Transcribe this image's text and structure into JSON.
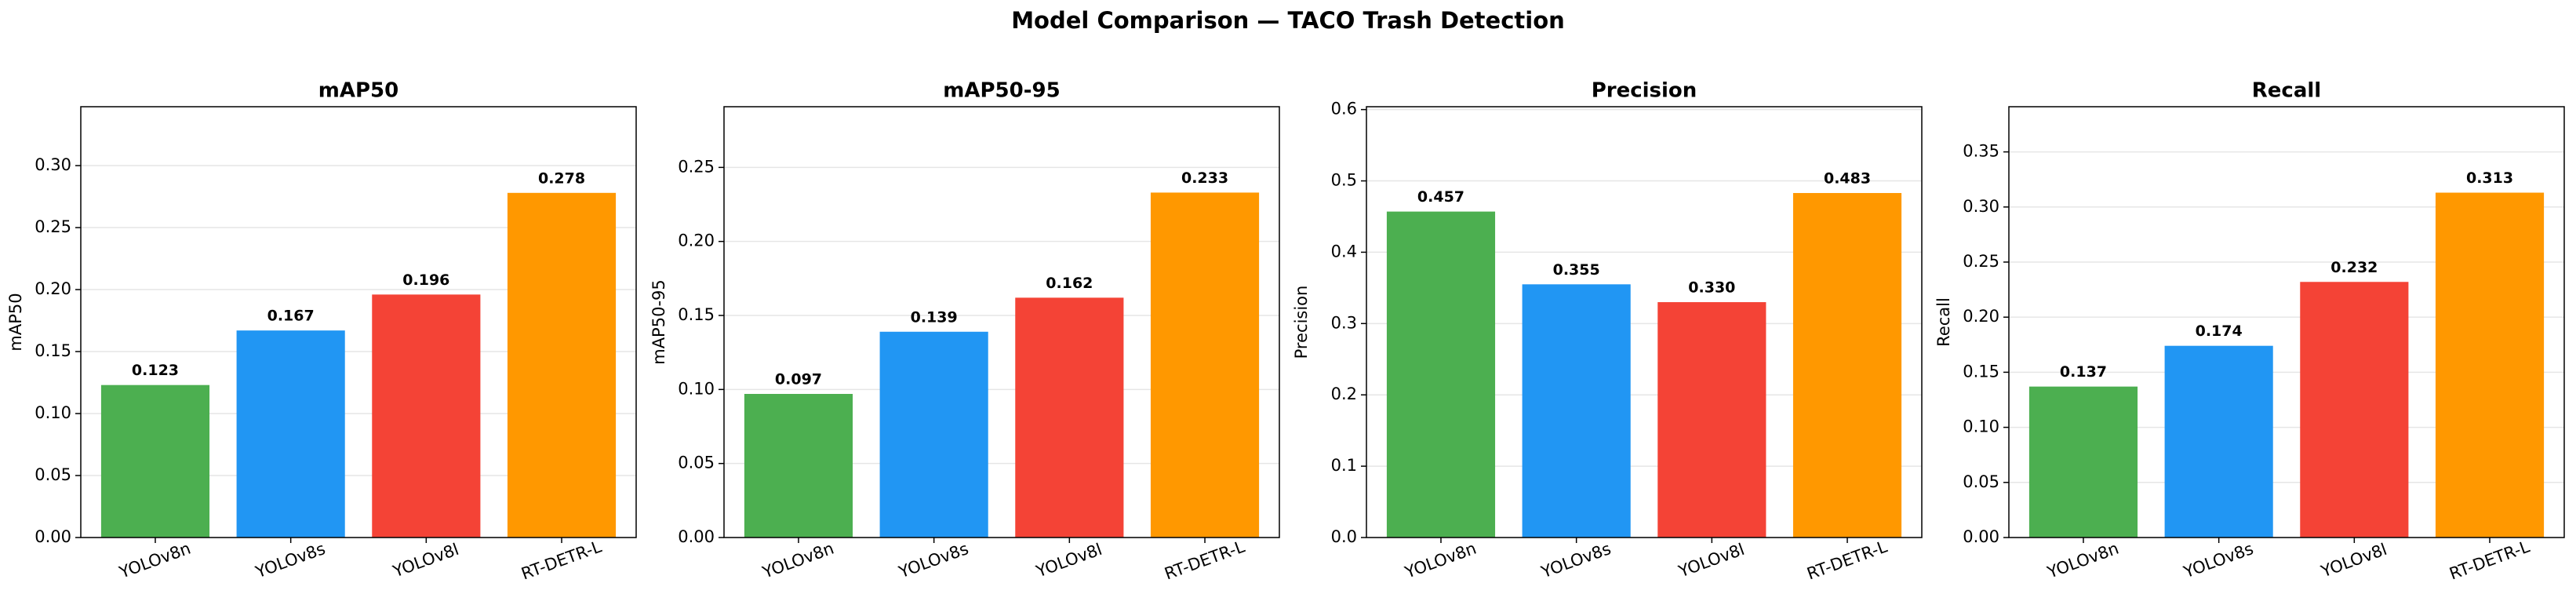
{
  "title": "Model Comparison — TACO Trash Detection",
  "chart_data": [
    {
      "type": "bar",
      "title": "mAP50",
      "ylabel": "mAP50",
      "categories": [
        "YOLOv8n",
        "YOLOv8s",
        "YOLOv8l",
        "RT-DETR-L"
      ],
      "values": [
        0.123,
        0.167,
        0.196,
        0.278
      ],
      "value_labels": [
        "0.123",
        "0.167",
        "0.196",
        "0.278"
      ],
      "colors": [
        "#4caf50",
        "#2196f3",
        "#f44336",
        "#ff9800"
      ],
      "ylim": [
        0,
        0.3475
      ],
      "yticks": [
        {
          "value": 0,
          "label": "0.00"
        },
        {
          "value": 0.05,
          "label": "0.05"
        },
        {
          "value": 0.1,
          "label": "0.10"
        },
        {
          "value": 0.15,
          "label": "0.15"
        },
        {
          "value": 0.2,
          "label": "0.20"
        },
        {
          "value": 0.25,
          "label": "0.25"
        },
        {
          "value": 0.3,
          "label": "0.30"
        }
      ],
      "grid": true
    },
    {
      "type": "bar",
      "title": "mAP50-95",
      "ylabel": "mAP50-95",
      "categories": [
        "YOLOv8n",
        "YOLOv8s",
        "YOLOv8l",
        "RT-DETR-L"
      ],
      "values": [
        0.097,
        0.139,
        0.162,
        0.233
      ],
      "value_labels": [
        "0.097",
        "0.139",
        "0.162",
        "0.233"
      ],
      "colors": [
        "#4caf50",
        "#2196f3",
        "#f44336",
        "#ff9800"
      ],
      "ylim": [
        0,
        0.291
      ],
      "yticks": [
        {
          "value": 0,
          "label": "0.00"
        },
        {
          "value": 0.05,
          "label": "0.05"
        },
        {
          "value": 0.1,
          "label": "0.10"
        },
        {
          "value": 0.15,
          "label": "0.15"
        },
        {
          "value": 0.2,
          "label": "0.20"
        },
        {
          "value": 0.25,
          "label": "0.25"
        }
      ],
      "grid": true
    },
    {
      "type": "bar",
      "title": "Precision",
      "ylabel": "Precision",
      "categories": [
        "YOLOv8n",
        "YOLOv8s",
        "YOLOv8l",
        "RT-DETR-L"
      ],
      "values": [
        0.457,
        0.355,
        0.33,
        0.483
      ],
      "value_labels": [
        "0.457",
        "0.355",
        "0.330",
        "0.483"
      ],
      "colors": [
        "#4caf50",
        "#2196f3",
        "#f44336",
        "#ff9800"
      ],
      "ylim": [
        0,
        0.604
      ],
      "yticks": [
        {
          "value": 0,
          "label": "0.0"
        },
        0.1,
        0.2,
        0.3,
        0.4,
        0.5,
        0.6
      ],
      "grid": true
    },
    {
      "type": "bar",
      "title": "Recall",
      "ylabel": "Recall",
      "categories": [
        "YOLOv8n",
        "YOLOv8s",
        "YOLOv8l",
        "RT-DETR-L"
      ],
      "values": [
        0.137,
        0.174,
        0.232,
        0.313
      ],
      "value_labels": [
        "0.137",
        "0.174",
        "0.232",
        "0.313"
      ],
      "colors": [
        "#4caf50",
        "#2196f3",
        "#f44336",
        "#ff9800"
      ],
      "ylim": [
        0,
        0.391
      ],
      "yticks": [
        {
          "value": 0,
          "label": "0.00"
        },
        {
          "value": 0.05,
          "label": "0.05"
        },
        {
          "value": 0.1,
          "label": "0.10"
        },
        {
          "value": 0.15,
          "label": "0.15"
        },
        {
          "value": 0.2,
          "label": "0.20"
        },
        {
          "value": 0.25,
          "label": "0.25"
        },
        {
          "value": 0.3,
          "label": "0.30"
        },
        {
          "value": 0.35,
          "label": "0.35"
        }
      ],
      "grid": true
    }
  ]
}
